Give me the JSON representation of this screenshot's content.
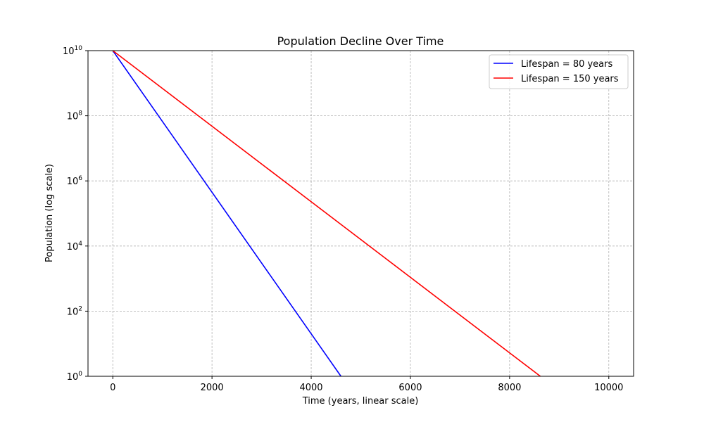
{
  "chart_data": {
    "type": "line",
    "title": "Population Decline Over Time",
    "xlabel": "Time (years, linear scale)",
    "ylabel": "Population (log scale)",
    "x_scale": "linear",
    "y_scale": "log",
    "xlim": [
      -500,
      10500
    ],
    "ylim_exponent": [
      0,
      10
    ],
    "x_ticks": [
      {
        "value": 0,
        "label": "0"
      },
      {
        "value": 2000,
        "label": "2000"
      },
      {
        "value": 4000,
        "label": "4000"
      },
      {
        "value": 6000,
        "label": "6000"
      },
      {
        "value": 8000,
        "label": "8000"
      },
      {
        "value": 10000,
        "label": "10000"
      }
    ],
    "y_ticks": [
      {
        "exponent": 0,
        "base": "10",
        "sup": "0"
      },
      {
        "exponent": 2,
        "base": "10",
        "sup": "2"
      },
      {
        "exponent": 4,
        "base": "10",
        "sup": "4"
      },
      {
        "exponent": 6,
        "base": "10",
        "sup": "6"
      },
      {
        "exponent": 8,
        "base": "10",
        "sup": "8"
      },
      {
        "exponent": 10,
        "base": "10",
        "sup": "10"
      }
    ],
    "grid": true,
    "legend_position": "top-right",
    "series": [
      {
        "name": "Lifespan = 80 years",
        "color": "#0000ff",
        "points": [
          {
            "x": 0,
            "y": 10000000000.0
          },
          {
            "x": 4600,
            "y": 1
          }
        ]
      },
      {
        "name": "Lifespan = 150 years",
        "color": "#ff0000",
        "points": [
          {
            "x": 0,
            "y": 10000000000.0
          },
          {
            "x": 8620,
            "y": 1
          }
        ]
      }
    ]
  }
}
